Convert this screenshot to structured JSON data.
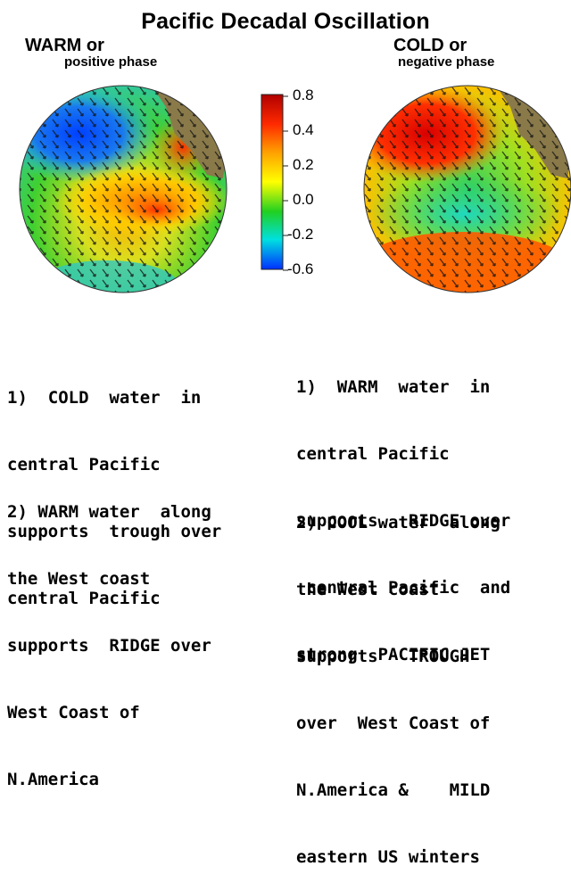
{
  "title": "Pacific Decadal Oscillation",
  "warm_phase": {
    "label": "WARM  or",
    "sublabel": "positive phase"
  },
  "cold_phase": {
    "label": "COLD  or",
    "sublabel": "negative phase"
  },
  "scale": {
    "ticks": [
      "0.8",
      "0.4",
      "0.2",
      "0.0",
      "-0.2",
      "-0.6"
    ],
    "colors": [
      "#b00000",
      "#ff2a00",
      "#ffa000",
      "#ffff00",
      "#20d020",
      "#00e0e0",
      "#0030ff"
    ]
  },
  "left_text": {
    "item1": [
      "1)  COLD  water  in",
      "central Pacific",
      "supports  trough over",
      "central Pacific"
    ],
    "item2": [
      "2) WARM water  along",
      "the West coast",
      "supports  RIDGE over",
      "West Coast of",
      "N.America"
    ]
  },
  "right_text": {
    "item1": [
      "1)  WARM  water  in",
      "central Pacific",
      "supports   RIDGE over",
      " central Pacific  and",
      "strong  PACIFIC JET"
    ],
    "item2": [
      "2) COOL water  along",
      "the West coast",
      "supports   TROUGH",
      "over  West Coast of",
      "N.America &    MILD",
      "eastern US winters"
    ]
  }
}
